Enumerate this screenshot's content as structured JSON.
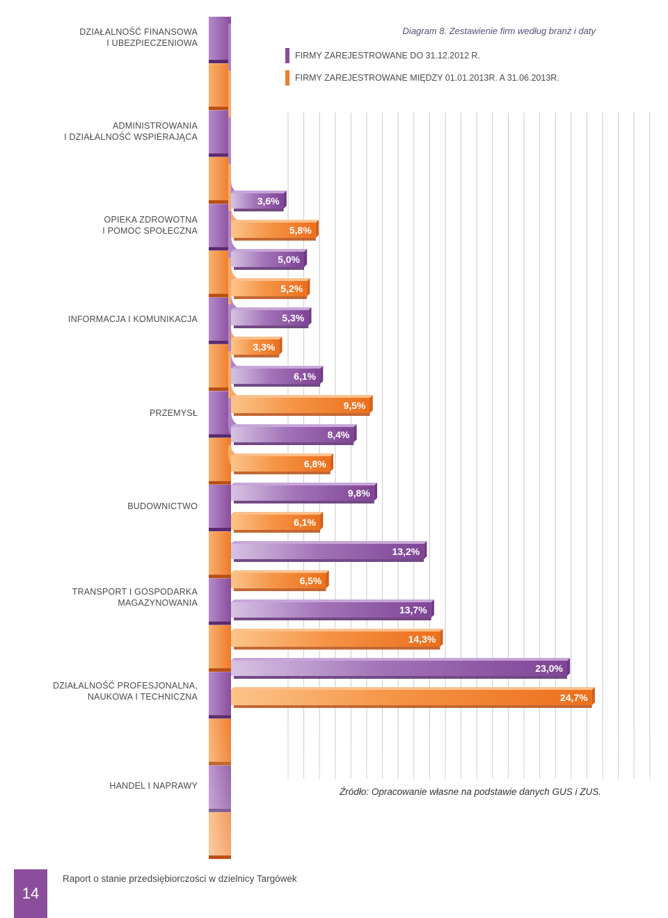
{
  "chart_data": {
    "type": "bar",
    "title": "Diagram 8. Zestawienie firm według branż i daty",
    "orientation": "horizontal",
    "categories": [
      [
        "DZIAŁALNOŚĆ FINANSOWA",
        "I UBEZPIECZENIOWA"
      ],
      [
        "ADMINISTROWANIA",
        "I DZIAŁALNOŚĆ WSPIERAJĄCA"
      ],
      [
        "OPIEKA ZDROWOTNA",
        "I POMOC SPOŁECZNA"
      ],
      [
        "INFORMACJA I KOMUNIKACJA"
      ],
      [
        "PRZEMYSŁ"
      ],
      [
        "BUDOWNICTWO"
      ],
      [
        "TRANSPORT I GOSPODARKA",
        "MAGAZYNOWANIA"
      ],
      [
        "DZIAŁALNOŚĆ PROFESJONALNA,",
        "NAUKOWA I TECHNICZNA"
      ],
      [
        "HANDEL I NAPRAWY"
      ]
    ],
    "series": [
      {
        "name": "FIRMY ZAREJESTROWANE DO 31.12.2012 R.",
        "color": "#8a4e9c",
        "values": [
          3.6,
          5.0,
          5.3,
          6.1,
          8.4,
          9.8,
          13.2,
          13.7,
          23.0
        ]
      },
      {
        "name": "FIRMY ZAREJESTROWANE MIĘDZY 01.01.2013R. A 31.06.2013R.",
        "color": "#f07c2a",
        "values": [
          5.8,
          5.2,
          3.3,
          9.5,
          6.8,
          6.1,
          6.5,
          14.3,
          24.7
        ]
      }
    ],
    "value_labels": [
      "3,6%",
      "5,8%",
      "5,0%",
      "5,2%",
      "5,3%",
      "3,3%",
      "6,1%",
      "9,5%",
      "8,4%",
      "6,8%",
      "9,8%",
      "6,1%",
      "13,2%",
      "6,5%",
      "13,7%",
      "14,3%",
      "23,0%",
      "24,7%"
    ],
    "xlim": [
      0,
      25
    ],
    "unit": "%",
    "grid": true,
    "legend": "top"
  },
  "source": "Źródło: Opracowanie własne na podstawie danych GUS i ZUS.",
  "footer": {
    "page_number": "14",
    "report_title": "Raport o stanie przedsiębiorczości w dzielnicy Targówek"
  }
}
